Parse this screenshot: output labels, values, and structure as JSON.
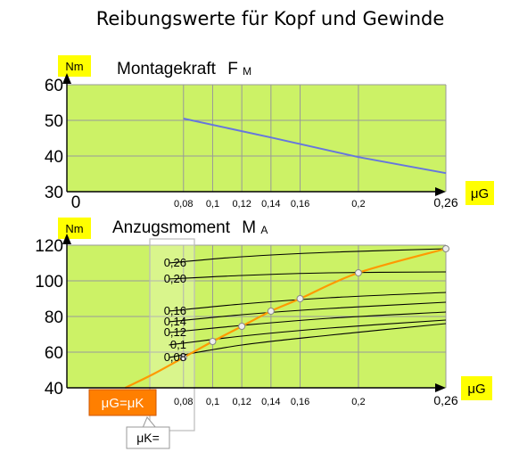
{
  "page_title": "Reibungswerte für Kopf und Gewinde",
  "colors": {
    "plot_bg": "#ccf266",
    "grid": "#999999",
    "badge_yellow": "#ffff00",
    "badge_orange": "#ff7f00",
    "blue_line": "#6677dd",
    "orange_curve": "#ff9900",
    "black_curves": "#000000"
  },
  "chart_data": [
    {
      "type": "line",
      "title": "Montagekraft",
      "title_symbol": "F",
      "title_subscript": "M",
      "unit_badge": "Nm",
      "xlabel_symbol": "μ",
      "xlabel_subscript": "G",
      "xlim": [
        0,
        0.26
      ],
      "ylim": [
        30,
        60
      ],
      "x_ticks": [
        "0,08",
        "0,1",
        "0,12",
        "0,14",
        "0,16",
        "0,2",
        "0,26"
      ],
      "x_tick_values": [
        0.08,
        0.1,
        0.12,
        0.14,
        0.16,
        0.2,
        0.26
      ],
      "x_origin_label": "0",
      "y_ticks": [
        "60",
        "50",
        "40",
        "30"
      ],
      "y_tick_values": [
        60,
        50,
        40,
        30
      ],
      "series": [
        {
          "x": [
            0.08,
            0.14,
            0.2,
            0.26
          ],
          "y": [
            50.5,
            45.2,
            39.7,
            35.2
          ]
        }
      ]
    },
    {
      "type": "line",
      "title": "Anzugsmoment",
      "title_symbol": "M",
      "title_subscript": "A",
      "unit_badge": "Nm",
      "xlabel_symbol": "μ",
      "xlabel_subscript": "G",
      "xlim": [
        0,
        0.26
      ],
      "ylim": [
        40,
        120
      ],
      "x_ticks": [
        "0,08",
        "0,1",
        "0,12",
        "0,14",
        "0,16",
        "0,2",
        "0,26"
      ],
      "x_tick_values": [
        0.08,
        0.1,
        0.12,
        0.14,
        0.16,
        0.2,
        0.26
      ],
      "y_ticks": [
        "120",
        "100",
        "80",
        "60",
        "40"
      ],
      "y_tick_values": [
        120,
        100,
        80,
        60,
        40
      ],
      "family_labels": [
        "0,26",
        "0,20",
        "0,16",
        "0,14",
        "0,12",
        "0,1",
        "0,08"
      ],
      "family_series": [
        {
          "name": "0,26",
          "x": [
            0.07,
            0.12,
            0.18,
            0.26
          ],
          "y": [
            110,
            113.5,
            116,
            118
          ]
        },
        {
          "name": "0,20",
          "x": [
            0.07,
            0.12,
            0.18,
            0.26
          ],
          "y": [
            101,
            103,
            104.5,
            105
          ]
        },
        {
          "name": "0,16",
          "x": [
            0.07,
            0.12,
            0.18,
            0.26
          ],
          "y": [
            83,
            87,
            90.5,
            93.5
          ]
        },
        {
          "name": "0,14",
          "x": [
            0.07,
            0.12,
            0.18,
            0.26
          ],
          "y": [
            77,
            81,
            84.5,
            88
          ]
        },
        {
          "name": "0,12",
          "x": [
            0.07,
            0.12,
            0.18,
            0.26
          ],
          "y": [
            71,
            75,
            79,
            82.5
          ]
        },
        {
          "name": "0,1",
          "x": [
            0.07,
            0.12,
            0.18,
            0.26
          ],
          "y": [
            64,
            69,
            73.5,
            78
          ]
        },
        {
          "name": "0,08",
          "x": [
            0.07,
            0.12,
            0.18,
            0.26
          ],
          "y": [
            57,
            64,
            69.5,
            76
          ]
        }
      ],
      "equal_friction_curve": {
        "x": [
          0.04,
          0.06,
          0.08,
          0.1,
          0.12,
          0.14,
          0.16,
          0.2,
          0.26
        ],
        "y": [
          40,
          48,
          57,
          66,
          74.5,
          83,
          90,
          104.5,
          118
        ]
      },
      "equal_friction_points": {
        "x": [
          0.08,
          0.1,
          0.12,
          0.14,
          0.16,
          0.2,
          0.26
        ],
        "y": [
          57,
          66,
          74.5,
          83,
          90,
          104.5,
          118
        ]
      },
      "legend_badge": "μG=μK",
      "callout_label": "μK="
    }
  ]
}
